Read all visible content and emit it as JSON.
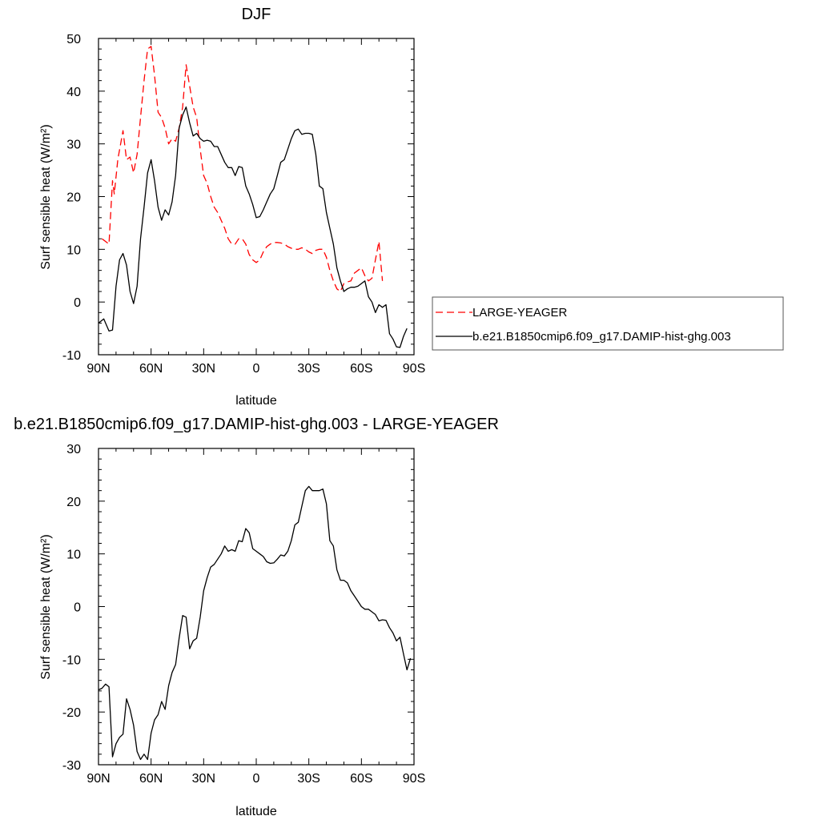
{
  "chart_data": [
    {
      "type": "line",
      "title": "DJF",
      "xlabel": "latitude",
      "ylabel": "Surf sensible heat (W/m²)",
      "xlim": [
        90,
        -90
      ],
      "ylim": [
        -10,
        50
      ],
      "x_ticks": [
        90,
        60,
        30,
        0,
        -30,
        -60,
        -90
      ],
      "x_tick_labels": [
        "90N",
        "60N",
        "30N",
        "0",
        "30S",
        "60S",
        "90S"
      ],
      "y_ticks": [
        -10,
        0,
        10,
        20,
        30,
        40,
        50
      ],
      "y_tick_labels": [
        "-10",
        "0",
        "10",
        "20",
        "30",
        "40",
        "50"
      ],
      "legend": {
        "placement": "outside-right",
        "entries": [
          "LARGE-YEAGER",
          "b.e21.B1850cmip6.f09_g17.DAMIP-hist-ghg.003"
        ]
      },
      "series": [
        {
          "name": "LARGE-YEAGER",
          "color": "#ff0000",
          "dash": "dashed",
          "points": [
            [
              88,
              12
            ],
            [
              84,
              11
            ],
            [
              82,
              23
            ],
            [
              81,
              20.5
            ],
            [
              79,
              27
            ],
            [
              76,
              32.5
            ],
            [
              74,
              27
            ],
            [
              72,
              27.5
            ],
            [
              70,
              24.5
            ],
            [
              68,
              28
            ],
            [
              66,
              35
            ],
            [
              64,
              42
            ],
            [
              62,
              48
            ],
            [
              60,
              48.5
            ],
            [
              58,
              43
            ],
            [
              56,
              36
            ],
            [
              54,
              35
            ],
            [
              52,
              33
            ],
            [
              50,
              30
            ],
            [
              48,
              31
            ],
            [
              46,
              30.5
            ],
            [
              44,
              33
            ],
            [
              42,
              37
            ],
            [
              40,
              45
            ],
            [
              38,
              41
            ],
            [
              36,
              37
            ],
            [
              34,
              35
            ],
            [
              32,
              29
            ],
            [
              30,
              24
            ],
            [
              28,
              22.5
            ],
            [
              26,
              20
            ],
            [
              24,
              18
            ],
            [
              22,
              17
            ],
            [
              20,
              15.5
            ],
            [
              18,
              14
            ],
            [
              16,
              12
            ],
            [
              14,
              11
            ],
            [
              12,
              11
            ],
            [
              10,
              12
            ],
            [
              8,
              12
            ],
            [
              6,
              11
            ],
            [
              4,
              9
            ],
            [
              2,
              8
            ],
            [
              0,
              7.5
            ],
            [
              -2,
              8
            ],
            [
              -4,
              9.5
            ],
            [
              -6,
              10.5
            ],
            [
              -8,
              11
            ],
            [
              -10,
              11.3
            ],
            [
              -12,
              11.3
            ],
            [
              -14,
              11.2
            ],
            [
              -16,
              11
            ],
            [
              -18,
              10.5
            ],
            [
              -20,
              10.2
            ],
            [
              -22,
              10
            ],
            [
              -24,
              10
            ],
            [
              -26,
              10.3
            ],
            [
              -28,
              10
            ],
            [
              -30,
              9.5
            ],
            [
              -32,
              9.2
            ],
            [
              -34,
              9.8
            ],
            [
              -36,
              10
            ],
            [
              -38,
              10
            ],
            [
              -40,
              8.5
            ],
            [
              -42,
              6
            ],
            [
              -44,
              4
            ],
            [
              -46,
              2.5
            ],
            [
              -48,
              2
            ],
            [
              -50,
              3.5
            ],
            [
              -52,
              3.8
            ],
            [
              -54,
              4
            ],
            [
              -56,
              5.5
            ],
            [
              -58,
              6
            ],
            [
              -60,
              6.5
            ],
            [
              -62,
              5
            ],
            [
              -64,
              4
            ],
            [
              -66,
              4.5
            ],
            [
              -68,
              8
            ],
            [
              -70,
              11.5
            ],
            [
              -72,
              4
            ]
          ]
        },
        {
          "name": "b.e21.B1850cmip6.f09_g17.DAMIP-hist-ghg.003",
          "color": "#000000",
          "dash": "solid",
          "points": [
            [
              90,
              -4
            ],
            [
              87,
              -3.2
            ],
            [
              84,
              -5.5
            ],
            [
              82,
              -5.3
            ],
            [
              80,
              3
            ],
            [
              78,
              8
            ],
            [
              76,
              9.2
            ],
            [
              74,
              7
            ],
            [
              72,
              2
            ],
            [
              70,
              -0.3
            ],
            [
              68,
              3
            ],
            [
              66,
              12
            ],
            [
              64,
              18
            ],
            [
              62,
              24.5
            ],
            [
              60,
              27
            ],
            [
              58,
              23
            ],
            [
              56,
              18
            ],
            [
              54,
              15.5
            ],
            [
              52,
              17.5
            ],
            [
              50,
              16.5
            ],
            [
              48,
              19
            ],
            [
              46,
              24
            ],
            [
              44,
              33
            ],
            [
              42,
              35.5
            ],
            [
              40,
              37
            ],
            [
              38,
              34
            ],
            [
              36,
              31.5
            ],
            [
              34,
              32
            ],
            [
              32,
              31
            ],
            [
              30,
              30.5
            ],
            [
              28,
              30.7
            ],
            [
              26,
              30.5
            ],
            [
              24,
              29.5
            ],
            [
              22,
              29.5
            ],
            [
              20,
              28
            ],
            [
              18,
              26.5
            ],
            [
              16,
              25.5
            ],
            [
              14,
              25.5
            ],
            [
              12,
              24
            ],
            [
              10,
              25.7
            ],
            [
              8,
              25.5
            ],
            [
              6,
              22
            ],
            [
              4,
              20.5
            ],
            [
              2,
              18.5
            ],
            [
              0,
              16
            ],
            [
              -2,
              16.2
            ],
            [
              -4,
              17.5
            ],
            [
              -6,
              19
            ],
            [
              -8,
              20.5
            ],
            [
              -10,
              21.5
            ],
            [
              -12,
              24
            ],
            [
              -14,
              26.5
            ],
            [
              -16,
              27
            ],
            [
              -18,
              29
            ],
            [
              -20,
              31
            ],
            [
              -22,
              32.5
            ],
            [
              -24,
              32.8
            ],
            [
              -26,
              31.8
            ],
            [
              -28,
              32
            ],
            [
              -30,
              32
            ],
            [
              -32,
              31.8
            ],
            [
              -34,
              28
            ],
            [
              -36,
              22
            ],
            [
              -38,
              21.5
            ],
            [
              -40,
              17
            ],
            [
              -42,
              14
            ],
            [
              -44,
              11
            ],
            [
              -46,
              6.5
            ],
            [
              -48,
              4
            ],
            [
              -50,
              2
            ],
            [
              -52,
              2.5
            ],
            [
              -54,
              2.8
            ],
            [
              -56,
              2.8
            ],
            [
              -58,
              3
            ],
            [
              -60,
              3.5
            ],
            [
              -62,
              4
            ],
            [
              -64,
              1
            ],
            [
              -66,
              0
            ],
            [
              -68,
              -2
            ],
            [
              -70,
              -0.5
            ],
            [
              -72,
              -1
            ],
            [
              -74,
              -0.5
            ],
            [
              -76,
              -6
            ],
            [
              -78,
              -7
            ],
            [
              -80,
              -8.5
            ],
            [
              -82,
              -8.6
            ],
            [
              -84,
              -6.5
            ],
            [
              -86,
              -5
            ]
          ]
        }
      ]
    },
    {
      "type": "line",
      "title": "b.e21.B1850cmip6.f09_g17.DAMIP-hist-ghg.003 - LARGE-YEAGER",
      "xlabel": "latitude",
      "ylabel": "Surf sensible heat (W/m²)",
      "xlim": [
        90,
        -90
      ],
      "ylim": [
        -30,
        30
      ],
      "x_ticks": [
        90,
        60,
        30,
        0,
        -30,
        -60,
        -90
      ],
      "x_tick_labels": [
        "90N",
        "60N",
        "30N",
        "0",
        "30S",
        "60S",
        "90S"
      ],
      "y_ticks": [
        -30,
        -20,
        -10,
        0,
        10,
        20,
        30
      ],
      "y_tick_labels": [
        "-30",
        "-20",
        "-10",
        "0",
        "10",
        "20",
        "30"
      ],
      "series": [
        {
          "color": "#000000",
          "dash": "solid",
          "points": [
            [
              90,
              -15.8
            ],
            [
              88,
              -15.5
            ],
            [
              86,
              -14.7
            ],
            [
              84,
              -15.2
            ],
            [
              82,
              -28.5
            ],
            [
              80,
              -26
            ],
            [
              78,
              -24.8
            ],
            [
              76,
              -24.2
            ],
            [
              74,
              -17.5
            ],
            [
              72,
              -19.5
            ],
            [
              70,
              -22.5
            ],
            [
              68,
              -27.5
            ],
            [
              66,
              -29
            ],
            [
              64,
              -28
            ],
            [
              62,
              -29
            ],
            [
              60,
              -24
            ],
            [
              58,
              -21.5
            ],
            [
              56,
              -20.5
            ],
            [
              54,
              -18
            ],
            [
              52,
              -19.5
            ],
            [
              50,
              -15
            ],
            [
              48,
              -12.5
            ],
            [
              46,
              -11
            ],
            [
              44,
              -6
            ],
            [
              42,
              -1.7
            ],
            [
              40,
              -2
            ],
            [
              38,
              -8
            ],
            [
              36,
              -6.5
            ],
            [
              34,
              -6
            ],
            [
              32,
              -2
            ],
            [
              30,
              3
            ],
            [
              28,
              5.5
            ],
            [
              26,
              7.5
            ],
            [
              24,
              8
            ],
            [
              22,
              9
            ],
            [
              20,
              10
            ],
            [
              18,
              11.5
            ],
            [
              16,
              10.5
            ],
            [
              14,
              10.8
            ],
            [
              12,
              10.5
            ],
            [
              10,
              12.5
            ],
            [
              8,
              12.3
            ],
            [
              6,
              14.8
            ],
            [
              4,
              14
            ],
            [
              2,
              11
            ],
            [
              0,
              10.5
            ],
            [
              -2,
              10
            ],
            [
              -4,
              9.5
            ],
            [
              -6,
              8.5
            ],
            [
              -8,
              8.2
            ],
            [
              -10,
              8.3
            ],
            [
              -12,
              9
            ],
            [
              -14,
              9.8
            ],
            [
              -16,
              9.6
            ],
            [
              -18,
              10.5
            ],
            [
              -20,
              12.5
            ],
            [
              -22,
              15.5
            ],
            [
              -24,
              16
            ],
            [
              -26,
              19
            ],
            [
              -28,
              22
            ],
            [
              -30,
              22.8
            ],
            [
              -32,
              22
            ],
            [
              -34,
              22
            ],
            [
              -36,
              22
            ],
            [
              -38,
              22.3
            ],
            [
              -40,
              19.5
            ],
            [
              -42,
              12.5
            ],
            [
              -44,
              11.5
            ],
            [
              -46,
              7
            ],
            [
              -48,
              5
            ],
            [
              -50,
              5
            ],
            [
              -52,
              4.5
            ],
            [
              -54,
              3
            ],
            [
              -56,
              2
            ],
            [
              -58,
              1
            ],
            [
              -60,
              0
            ],
            [
              -62,
              -0.5
            ],
            [
              -64,
              -0.5
            ],
            [
              -66,
              -1
            ],
            [
              -68,
              -1.5
            ],
            [
              -70,
              -2.7
            ],
            [
              -72,
              -2.5
            ],
            [
              -74,
              -2.6
            ],
            [
              -76,
              -4
            ],
            [
              -78,
              -5
            ],
            [
              -80,
              -6.5
            ],
            [
              -82,
              -5.8
            ],
            [
              -84,
              -9
            ],
            [
              -86,
              -12
            ],
            [
              -88,
              -9.8
            ]
          ]
        }
      ]
    }
  ]
}
